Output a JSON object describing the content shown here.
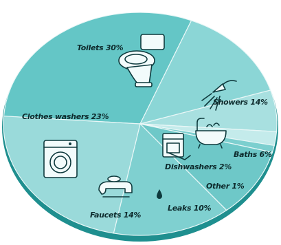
{
  "chart_data": {
    "type": "pie",
    "title": "",
    "categories": [
      "Toilets",
      "Showers",
      "Baths",
      "Dishwashers",
      "Other",
      "Leaks",
      "Faucets",
      "Clothes washers"
    ],
    "values": [
      30,
      14,
      6,
      2,
      1,
      10,
      14,
      23
    ],
    "unit": "%",
    "labels": [
      "Toilets 30%",
      "Showers 14%",
      "Baths 6%",
      "Dishwashers 2%",
      "Other 1%",
      "Leaks 10%",
      "Faucets 14%",
      "Clothes washers 23%"
    ],
    "colors": [
      "#64c6c6",
      "#8bd6d6",
      "#a8e0e0",
      "#c4ebeb",
      "#7ccfcf",
      "#6ec8c8",
      "#7fd0d0",
      "#9adada"
    ],
    "icons": [
      "toilet-icon",
      "showerhead-icon",
      "bathtub-icon",
      "dishwasher-icon",
      "",
      "water-drop-icon",
      "faucet-icon",
      "washing-machine-icon"
    ],
    "legend": "none"
  }
}
